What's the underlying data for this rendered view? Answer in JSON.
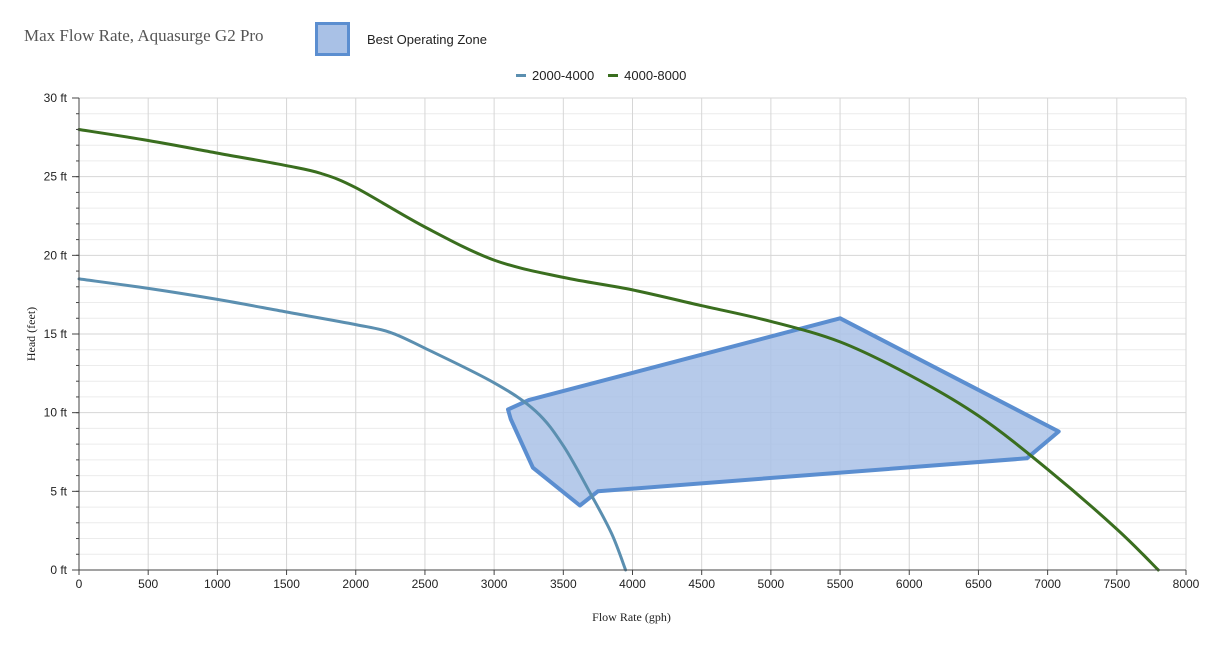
{
  "chart_data": {
    "type": "line",
    "title": "Max Flow Rate, Aquasurge G2 Pro",
    "xlabel": "Flow Rate (gph)",
    "ylabel": "Head (feet)",
    "xlim": [
      0,
      8000
    ],
    "ylim": [
      0,
      30
    ],
    "x_ticks": [
      0,
      500,
      1000,
      1500,
      2000,
      2500,
      3000,
      3500,
      4000,
      4500,
      5000,
      5500,
      6000,
      6500,
      7000,
      7500,
      8000
    ],
    "y_ticks": [
      {
        "value": 0,
        "label": "0 ft"
      },
      {
        "value": 5,
        "label": "5 ft"
      },
      {
        "value": 10,
        "label": "10 ft"
      },
      {
        "value": 15,
        "label": "15 ft"
      },
      {
        "value": 20,
        "label": "20 ft"
      },
      {
        "value": 25,
        "label": "25 ft"
      },
      {
        "value": 30,
        "label": "30 ft"
      }
    ],
    "grid": true,
    "legend_position": "top-center",
    "series": [
      {
        "name": "2000-4000",
        "color": "#5b8fb0",
        "x": [
          0,
          500,
          1000,
          1500,
          2000,
          2250,
          2500,
          3000,
          3300,
          3500,
          3700,
          3850,
          3950
        ],
        "y": [
          18.5,
          17.9,
          17.2,
          16.4,
          15.6,
          15.1,
          14.1,
          11.9,
          10.1,
          7.9,
          4.8,
          2.3,
          0
        ]
      },
      {
        "name": "4000-8000",
        "color": "#3a6e1f",
        "x": [
          0,
          500,
          1000,
          1500,
          1750,
          2000,
          2500,
          3000,
          3500,
          4000,
          4500,
          5000,
          5500,
          6000,
          6500,
          7000,
          7500,
          7800
        ],
        "y": [
          28,
          27.3,
          26.5,
          25.7,
          25.2,
          24.3,
          21.8,
          19.7,
          18.6,
          17.8,
          16.8,
          15.8,
          14.5,
          12.4,
          9.8,
          6.4,
          2.6,
          0
        ]
      }
    ],
    "zones": [
      {
        "name": "Best Operating Zone",
        "fill": "#a9c1e6",
        "stroke": "#5b8ed0",
        "points": [
          [
            3250,
            10.8
          ],
          [
            5500,
            16
          ],
          [
            7080,
            8.8
          ],
          [
            6850,
            7.1
          ],
          [
            3750,
            5
          ],
          [
            3620,
            4.1
          ],
          [
            3280,
            6.5
          ],
          [
            3120,
            9.6
          ],
          [
            3100,
            10.2
          ],
          [
            3250,
            10.8
          ]
        ]
      }
    ]
  }
}
